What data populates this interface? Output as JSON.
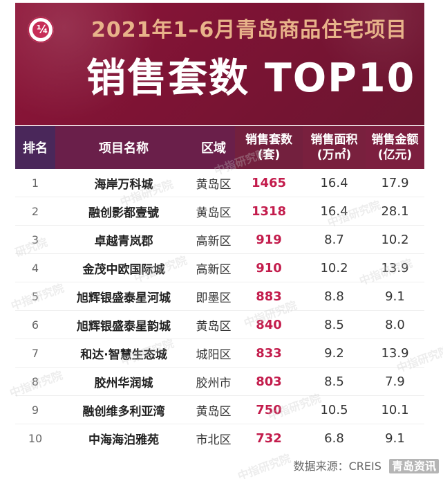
{
  "header": {
    "subtitle": "2021年1–6月青岛商品住宅项目",
    "title": "销售套数 TOP10"
  },
  "table": {
    "columns": {
      "rank": "排名",
      "name": "项目名称",
      "area": "区域",
      "sales_line1": "销售套数",
      "sales_line2": "(套)",
      "space_line1": "销售面积",
      "space_line2": "(万㎡)",
      "amount_line1": "销售金额",
      "amount_line2": "(亿元)"
    },
    "rows": [
      {
        "rank": "1",
        "name": "海岸万科城",
        "area": "黄岛区",
        "sales": "1465",
        "space": "16.4",
        "amount": "17.9"
      },
      {
        "rank": "2",
        "name": "融创影都壹號",
        "area": "黄岛区",
        "sales": "1318",
        "space": "16.4",
        "amount": "28.1"
      },
      {
        "rank": "3",
        "name": "卓越青岚郡",
        "area": "高新区",
        "sales": "919",
        "space": "8.7",
        "amount": "10.2"
      },
      {
        "rank": "4",
        "name": "金茂中欧国际城",
        "area": "高新区",
        "sales": "910",
        "space": "10.2",
        "amount": "13.9"
      },
      {
        "rank": "5",
        "name": "旭辉银盛泰星河城",
        "area": "即墨区",
        "sales": "883",
        "space": "8.8",
        "amount": "9.1"
      },
      {
        "rank": "6",
        "name": "旭辉银盛泰星韵城",
        "area": "黄岛区",
        "sales": "840",
        "space": "8.5",
        "amount": "8.0"
      },
      {
        "rank": "7",
        "name": "和达·智慧生态城",
        "area": "城阳区",
        "sales": "833",
        "space": "9.2",
        "amount": "13.9"
      },
      {
        "rank": "8",
        "name": "胶州华润城",
        "area": "胶州市",
        "sales": "803",
        "space": "8.5",
        "amount": "7.9"
      },
      {
        "rank": "9",
        "name": "融创维多利亚湾",
        "area": "黄岛区",
        "sales": "750",
        "space": "10.5",
        "amount": "10.1"
      },
      {
        "rank": "10",
        "name": "中海海泊雅苑",
        "area": "市北区",
        "sales": "732",
        "space": "6.8",
        "amount": "9.1"
      }
    ]
  },
  "watermarks": {
    "text1": "中指研究院",
    "text2": "研究院"
  },
  "footer": {
    "left": "数据来源：CREIS",
    "right": "青岛资讯"
  },
  "logo": {
    "mark": "¼"
  }
}
